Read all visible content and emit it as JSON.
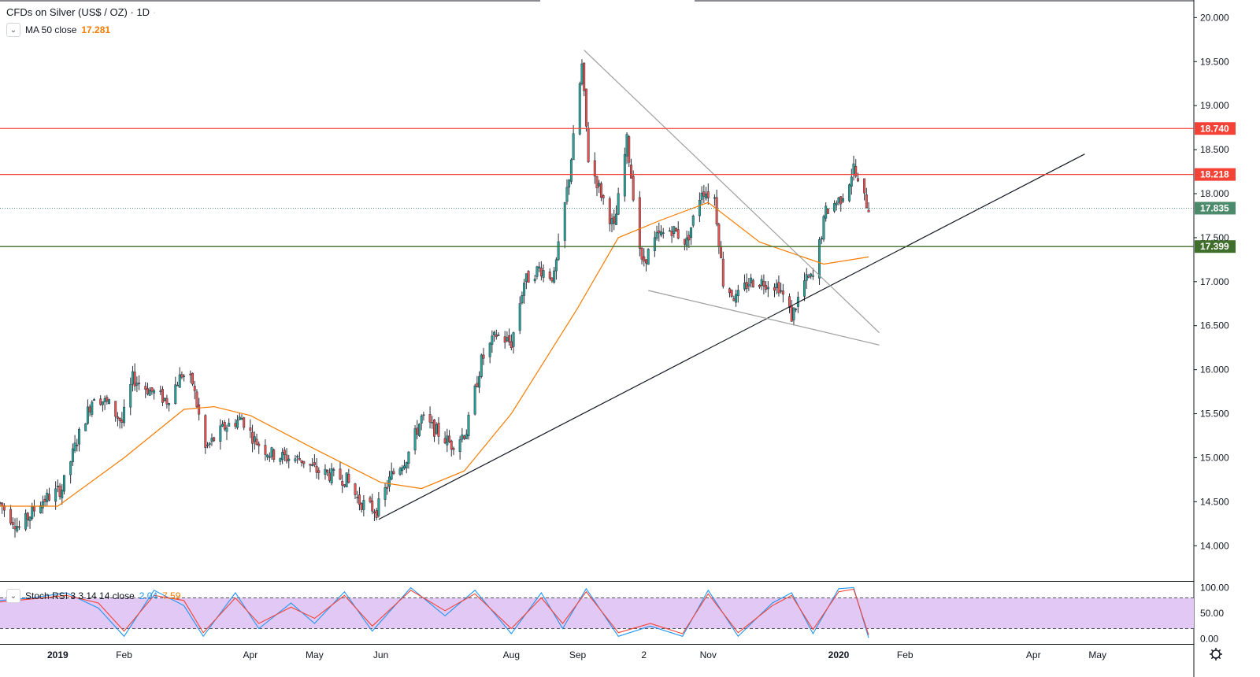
{
  "title": "CFDs on Silver (US$ / OZ)",
  "interval": "1D",
  "legend_separator": "·",
  "ma": {
    "label": "MA 50 close",
    "value": "17.281"
  },
  "stoch": {
    "label": "Stoch RSI 3 3 14 14 close",
    "k": "2.04",
    "d": "7.59"
  },
  "colors": {
    "up": "#26a69a",
    "down": "#ef5350",
    "ma": "#f57c00",
    "res": "#f44336",
    "sup": "#3f6f2a",
    "current": "#4b8b6b",
    "stoch_k": "#2196f3",
    "stoch_d": "#f44336",
    "stoch_band": "#e1c8f5"
  },
  "chart_data": [
    {
      "type": "candlestick",
      "title": "CFDs on Silver (US$ / OZ)",
      "price_axis": {
        "ticks": [
          "20.000",
          "19.500",
          "19.000",
          "18.500",
          "18.000",
          "17.500",
          "17.000",
          "16.500",
          "16.000",
          "15.500",
          "15.000",
          "14.500",
          "14.000"
        ],
        "range": [
          13.6,
          20.2
        ]
      },
      "time_axis": {
        "ticks": [
          {
            "date": "2019-01-01",
            "label": "2019",
            "bold": true
          },
          {
            "date": "2019-02-01",
            "label": "Feb"
          },
          {
            "date": "2019-04-01",
            "label": "Apr"
          },
          {
            "date": "2019-05-01",
            "label": "May"
          },
          {
            "date": "2019-06-01",
            "label": "Jun"
          },
          {
            "date": "2019-08-01",
            "label": "Aug"
          },
          {
            "date": "2019-09-01",
            "label": "Sep"
          },
          {
            "date": "2019-10-02",
            "label": "2"
          },
          {
            "date": "2019-11-01",
            "label": "Nov"
          },
          {
            "date": "2020-01-01",
            "label": "2020",
            "bold": true
          },
          {
            "date": "2020-02-01",
            "label": "Feb"
          },
          {
            "date": "2020-04-01",
            "label": "Apr"
          },
          {
            "date": "2020-05-01",
            "label": "May"
          }
        ],
        "range": [
          "2018-12-05",
          "2020-06-15"
        ]
      },
      "price_path": [
        [
          "2018-12-05",
          14.48
        ],
        [
          "2018-12-14",
          14.2
        ],
        [
          "2018-12-24",
          14.5
        ],
        [
          "2019-01-03",
          14.65
        ],
        [
          "2019-01-10",
          15.2
        ],
        [
          "2019-01-18",
          15.72
        ],
        [
          "2019-01-25",
          15.6
        ],
        [
          "2019-01-31",
          15.4
        ],
        [
          "2019-02-05",
          15.9
        ],
        [
          "2019-02-12",
          15.78
        ],
        [
          "2019-02-21",
          15.65
        ],
        [
          "2019-02-28",
          15.95
        ],
        [
          "2019-03-05",
          15.85
        ],
        [
          "2019-03-11",
          15.1
        ],
        [
          "2019-03-20",
          15.35
        ],
        [
          "2019-03-28",
          15.45
        ],
        [
          "2019-04-03",
          15.2
        ],
        [
          "2019-04-10",
          15.05
        ],
        [
          "2019-04-18",
          15.0
        ],
        [
          "2019-04-25",
          14.98
        ],
        [
          "2019-05-02",
          14.85
        ],
        [
          "2019-05-09",
          14.8
        ],
        [
          "2019-05-16",
          14.75
        ],
        [
          "2019-05-22",
          14.5
        ],
        [
          "2019-05-30",
          14.4
        ],
        [
          "2019-06-06",
          14.8
        ],
        [
          "2019-06-13",
          15.0
        ],
        [
          "2019-06-20",
          15.45
        ],
        [
          "2019-06-27",
          15.3
        ],
        [
          "2019-07-04",
          15.15
        ],
        [
          "2019-07-11",
          15.3
        ],
        [
          "2019-07-18",
          16.1
        ],
        [
          "2019-07-25",
          16.4
        ],
        [
          "2019-08-01",
          16.3
        ],
        [
          "2019-08-07",
          17.0
        ],
        [
          "2019-08-14",
          17.15
        ],
        [
          "2019-08-21",
          17.05
        ],
        [
          "2019-08-28",
          18.2
        ],
        [
          "2019-09-03",
          19.45
        ],
        [
          "2019-09-06",
          18.4
        ],
        [
          "2019-09-12",
          18.0
        ],
        [
          "2019-09-18",
          17.6
        ],
        [
          "2019-09-24",
          18.6
        ],
        [
          "2019-10-01",
          17.2
        ],
        [
          "2019-10-08",
          17.5
        ],
        [
          "2019-10-15",
          17.6
        ],
        [
          "2019-10-22",
          17.45
        ],
        [
          "2019-10-29",
          18.05
        ],
        [
          "2019-11-04",
          17.95
        ],
        [
          "2019-11-08",
          17.0
        ],
        [
          "2019-11-14",
          16.8
        ],
        [
          "2019-11-20",
          17.0
        ],
        [
          "2019-11-27",
          17.0
        ],
        [
          "2019-12-04",
          16.95
        ],
        [
          "2019-12-10",
          16.6
        ],
        [
          "2019-12-16",
          17.0
        ],
        [
          "2019-12-20",
          17.05
        ],
        [
          "2019-12-26",
          17.8
        ],
        [
          "2020-01-02",
          17.95
        ],
        [
          "2020-01-06",
          18.15
        ],
        [
          "2020-01-08",
          18.3
        ],
        [
          "2020-01-10",
          18.1
        ],
        [
          "2020-01-13",
          17.95
        ],
        [
          "2020-01-15",
          17.835
        ]
      ],
      "moving_average": {
        "label": "MA 50 close",
        "points": [
          [
            "2018-12-05",
            14.45
          ],
          [
            "2019-01-01",
            14.45
          ],
          [
            "2019-02-01",
            15.0
          ],
          [
            "2019-03-01",
            15.55
          ],
          [
            "2019-03-15",
            15.58
          ],
          [
            "2019-04-01",
            15.48
          ],
          [
            "2019-05-01",
            15.1
          ],
          [
            "2019-06-01",
            14.72
          ],
          [
            "2019-06-20",
            14.65
          ],
          [
            "2019-07-10",
            14.85
          ],
          [
            "2019-08-01",
            15.5
          ],
          [
            "2019-09-01",
            16.7
          ],
          [
            "2019-09-20",
            17.5
          ],
          [
            "2019-10-10",
            17.7
          ],
          [
            "2019-11-01",
            17.9
          ],
          [
            "2019-11-25",
            17.45
          ],
          [
            "2019-12-25",
            17.2
          ],
          [
            "2020-01-15",
            17.281
          ]
        ]
      },
      "horizontal_levels": [
        {
          "value": 18.74,
          "label": "18.740",
          "kind": "resistance"
        },
        {
          "value": 18.218,
          "label": "18.218",
          "kind": "resistance"
        },
        {
          "value": 17.835,
          "label": "17.835",
          "kind": "current"
        },
        {
          "value": 17.399,
          "label": "17.399",
          "kind": "support"
        }
      ],
      "trendlines": [
        {
          "name": "rising-support",
          "from": [
            "2019-05-31",
            14.3
          ],
          "to": [
            "2020-04-25",
            18.45
          ]
        },
        {
          "name": "wedge-upper",
          "from": [
            "2019-09-04",
            19.63
          ],
          "to": [
            "2020-01-20",
            16.42
          ]
        },
        {
          "name": "wedge-lower",
          "from": [
            "2019-10-04",
            16.9
          ],
          "to": [
            "2020-01-20",
            16.28
          ]
        }
      ]
    },
    {
      "type": "line",
      "title": "Stoch RSI 3 3 14 14 close",
      "y_axis": {
        "ticks": [
          "100.00",
          "50.00",
          "0.00"
        ],
        "range": [
          -10,
          110
        ],
        "band": [
          20,
          80
        ]
      },
      "series": [
        {
          "name": "K",
          "values": [
            [
              "2018-12-05",
              75
            ],
            [
              "2018-12-20",
              80
            ],
            [
              "2019-01-05",
              90
            ],
            [
              "2019-01-20",
              60
            ],
            [
              "2019-02-01",
              5
            ],
            [
              "2019-02-15",
              95
            ],
            [
              "2019-03-01",
              65
            ],
            [
              "2019-03-10",
              5
            ],
            [
              "2019-03-25",
              90
            ],
            [
              "2019-04-05",
              20
            ],
            [
              "2019-04-20",
              70
            ],
            [
              "2019-05-01",
              30
            ],
            [
              "2019-05-15",
              92
            ],
            [
              "2019-05-28",
              15
            ],
            [
              "2019-06-15",
              100
            ],
            [
              "2019-07-01",
              45
            ],
            [
              "2019-07-15",
              95
            ],
            [
              "2019-08-01",
              10
            ],
            [
              "2019-08-15",
              90
            ],
            [
              "2019-08-25",
              20
            ],
            [
              "2019-09-05",
              98
            ],
            [
              "2019-09-20",
              5
            ],
            [
              "2019-10-05",
              25
            ],
            [
              "2019-10-20",
              5
            ],
            [
              "2019-11-01",
              95
            ],
            [
              "2019-11-15",
              5
            ],
            [
              "2019-12-01",
              70
            ],
            [
              "2019-12-10",
              90
            ],
            [
              "2019-12-20",
              10
            ],
            [
              "2020-01-01",
              98
            ],
            [
              "2020-01-08",
              100
            ],
            [
              "2020-01-15",
              2.04
            ]
          ]
        },
        {
          "name": "D",
          "values": [
            [
              "2018-12-05",
              72
            ],
            [
              "2018-12-20",
              78
            ],
            [
              "2019-01-05",
              85
            ],
            [
              "2019-01-20",
              70
            ],
            [
              "2019-02-01",
              15
            ],
            [
              "2019-02-15",
              85
            ],
            [
              "2019-03-01",
              75
            ],
            [
              "2019-03-10",
              12
            ],
            [
              "2019-03-25",
              80
            ],
            [
              "2019-04-05",
              30
            ],
            [
              "2019-04-20",
              62
            ],
            [
              "2019-05-01",
              40
            ],
            [
              "2019-05-15",
              85
            ],
            [
              "2019-05-28",
              25
            ],
            [
              "2019-06-15",
              95
            ],
            [
              "2019-07-01",
              55
            ],
            [
              "2019-07-15",
              88
            ],
            [
              "2019-08-01",
              20
            ],
            [
              "2019-08-15",
              80
            ],
            [
              "2019-08-25",
              30
            ],
            [
              "2019-09-05",
              92
            ],
            [
              "2019-09-20",
              12
            ],
            [
              "2019-10-05",
              30
            ],
            [
              "2019-10-20",
              10
            ],
            [
              "2019-11-01",
              88
            ],
            [
              "2019-11-15",
              12
            ],
            [
              "2019-12-01",
              65
            ],
            [
              "2019-12-10",
              85
            ],
            [
              "2019-12-20",
              18
            ],
            [
              "2020-01-01",
              92
            ],
            [
              "2020-01-08",
              97
            ],
            [
              "2020-01-15",
              7.59
            ]
          ]
        }
      ]
    }
  ]
}
